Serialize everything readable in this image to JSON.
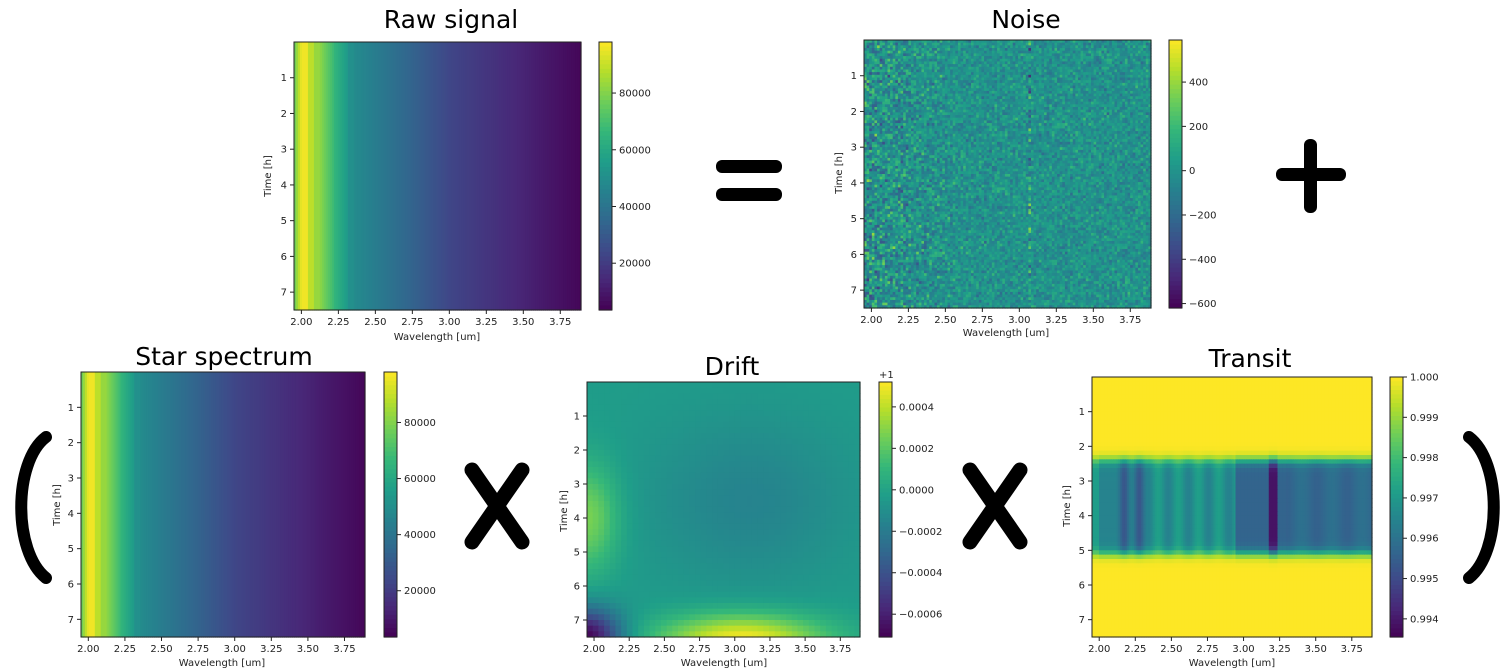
{
  "operators": {
    "equals": "=",
    "plus": "+",
    "times1": "X",
    "times2": "X",
    "open_paren": "(",
    "close_paren": ")"
  },
  "chart_data": [
    {
      "id": "raw",
      "type": "heatmap",
      "title": "Raw signal",
      "xlabel": "Wavelength [um]",
      "ylabel": "Time [h]",
      "xlim": [
        1.95,
        3.89
      ],
      "ylim": [
        7.5,
        0.0
      ],
      "xticks": [
        "2.00",
        "2.25",
        "2.50",
        "2.75",
        "3.00",
        "3.25",
        "3.50",
        "3.75"
      ],
      "yticks": [
        "1",
        "2",
        "3",
        "4",
        "5",
        "6",
        "7"
      ],
      "colorbar": {
        "min": 3500,
        "max": 98000,
        "ticks": [
          "20000",
          "40000",
          "60000",
          "80000"
        ],
        "tick_values": [
          20000,
          40000,
          60000,
          80000
        ],
        "offset": ""
      },
      "pattern": "star",
      "noise": true
    },
    {
      "id": "noise",
      "type": "heatmap",
      "title": "Noise",
      "xlabel": "Wavelength [um]",
      "ylabel": "Time [h]",
      "xlim": [
        1.95,
        3.89
      ],
      "ylim": [
        7.5,
        0.0
      ],
      "xticks": [
        "2.00",
        "2.25",
        "2.50",
        "2.75",
        "3.00",
        "3.25",
        "3.50",
        "3.75"
      ],
      "yticks": [
        "1",
        "2",
        "3",
        "4",
        "5",
        "6",
        "7"
      ],
      "colorbar": {
        "min": -620,
        "max": 590,
        "ticks": [
          "400",
          "200",
          "0",
          "−200",
          "−400",
          "−600"
        ],
        "tick_values": [
          400,
          200,
          0,
          -200,
          -400,
          -600
        ],
        "offset": ""
      },
      "pattern": "noise"
    },
    {
      "id": "star",
      "type": "heatmap",
      "title": "Star spectrum",
      "xlabel": "Wavelength [um]",
      "ylabel": "Time [h]",
      "xlim": [
        1.95,
        3.89
      ],
      "ylim": [
        7.5,
        0.0
      ],
      "xticks": [
        "2.00",
        "2.25",
        "2.50",
        "2.75",
        "3.00",
        "3.25",
        "3.50",
        "3.75"
      ],
      "yticks": [
        "1",
        "2",
        "3",
        "4",
        "5",
        "6",
        "7"
      ],
      "colorbar": {
        "min": 3500,
        "max": 98000,
        "ticks": [
          "20000",
          "40000",
          "60000",
          "80000"
        ],
        "tick_values": [
          20000,
          40000,
          60000,
          80000
        ],
        "offset": ""
      },
      "pattern": "star"
    },
    {
      "id": "drift",
      "type": "heatmap",
      "title": "Drift",
      "xlabel": "Wavelength [um]",
      "ylabel": "Time [h]",
      "xlim": [
        1.95,
        3.89
      ],
      "ylim": [
        7.5,
        0.0
      ],
      "xticks": [
        "2.00",
        "2.25",
        "2.50",
        "2.75",
        "3.00",
        "3.25",
        "3.50",
        "3.75"
      ],
      "yticks": [
        "1",
        "2",
        "3",
        "4",
        "5",
        "6",
        "7"
      ],
      "colorbar": {
        "min": -0.00071,
        "max": 0.00052,
        "ticks": [
          "0.0004",
          "0.0002",
          "0.0000",
          "−0.0002",
          "−0.0004",
          "−0.0006"
        ],
        "tick_values": [
          0.0004,
          0.0002,
          0,
          -0.0002,
          -0.0004,
          -0.0006
        ],
        "offset": "+1"
      },
      "pattern": "drift"
    },
    {
      "id": "transit",
      "type": "heatmap",
      "title": "Transit",
      "xlabel": "Wavelength [um]",
      "ylabel": "Time [h]",
      "xlim": [
        1.95,
        3.89
      ],
      "ylim": [
        7.5,
        0.0
      ],
      "xticks": [
        "2.00",
        "2.25",
        "2.50",
        "2.75",
        "3.00",
        "3.25",
        "3.50",
        "3.75"
      ],
      "yticks": [
        "1",
        "2",
        "3",
        "4",
        "5",
        "6",
        "7"
      ],
      "colorbar": {
        "min": 0.99355,
        "max": 1.0,
        "ticks": [
          "1.000",
          "0.999",
          "0.998",
          "0.997",
          "0.996",
          "0.995",
          "0.994"
        ],
        "tick_values": [
          1.0,
          0.999,
          0.998,
          0.997,
          0.996,
          0.995,
          0.994
        ],
        "offset": ""
      },
      "pattern": "transit",
      "transit_window_h": [
        2.4,
        5.1
      ]
    }
  ]
}
